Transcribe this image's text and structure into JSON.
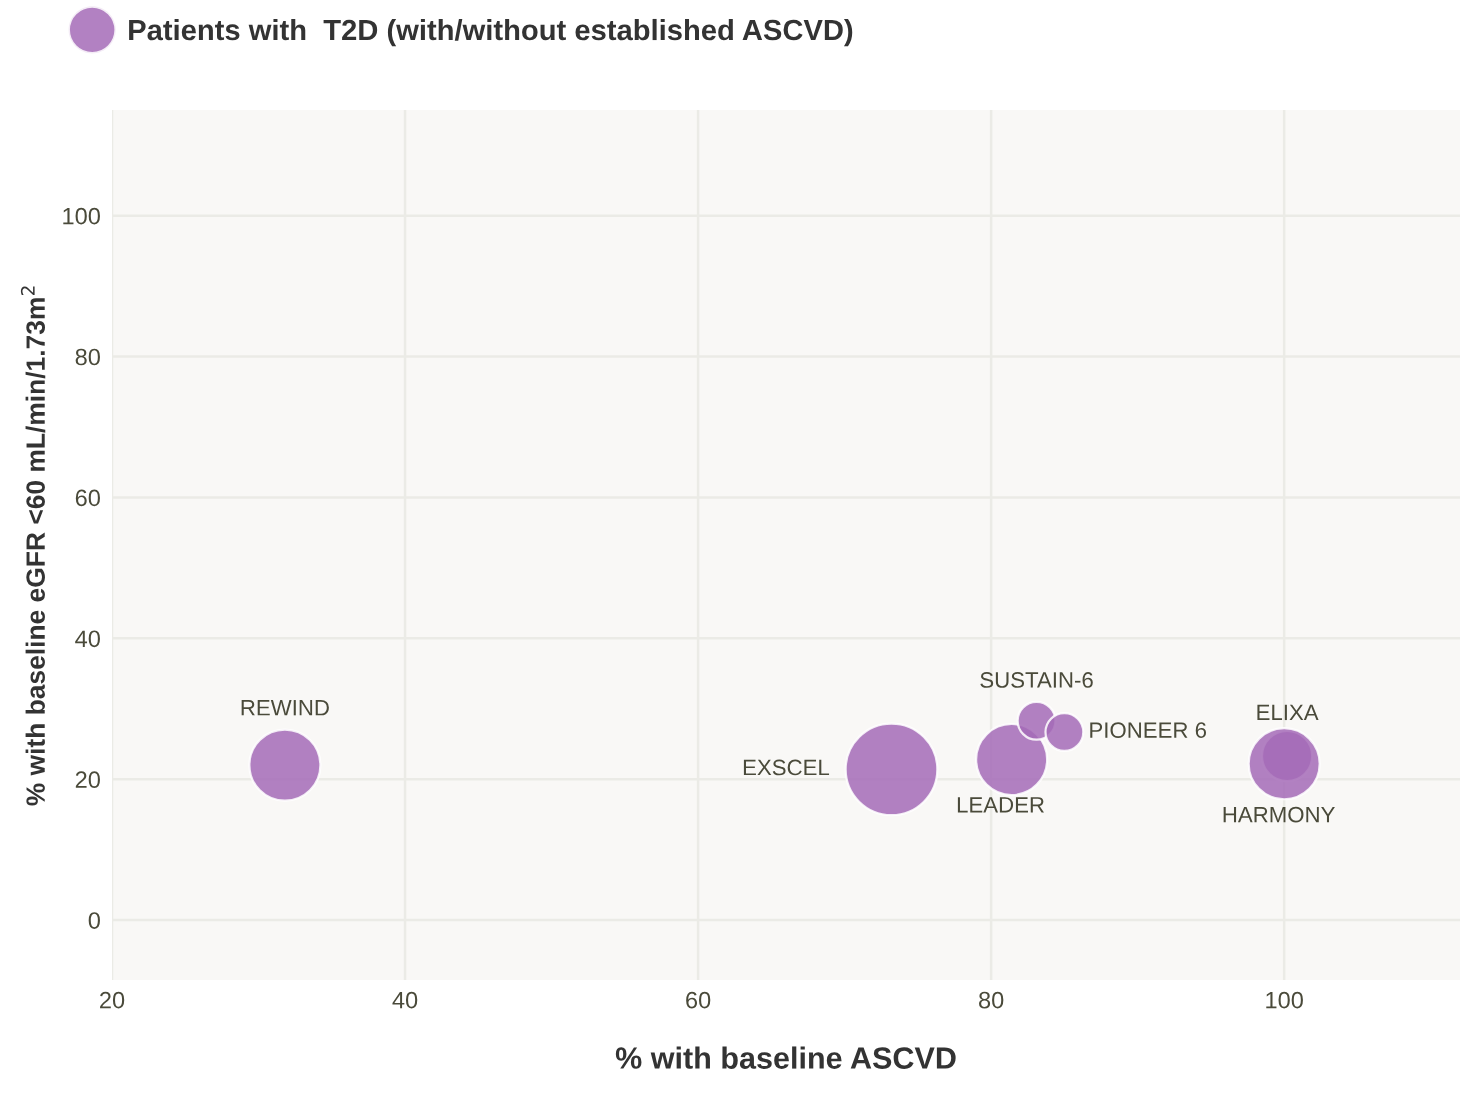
{
  "chart_data": {
    "type": "bubble",
    "xlabel": "% with baseline ASCVD",
    "ylabel": "% with baseline eGFR <60 mL/min/1.73m$^{2}$",
    "x": [
      31.8,
      73.2,
      81.4,
      83.1,
      85.0,
      100.2,
      100.0
    ],
    "series": [
      {
        "name": "Patients with  T2D (with/without established ASCVD)",
        "color": "#a56bb7",
        "values": [
          22.0,
          21.4,
          22.8,
          28.3,
          26.7,
          23.3,
          22.2
        ],
        "sizes": [
          0.6,
          1,
          0.6,
          0.17,
          0.17,
          0.3,
          0.6
        ]
      }
    ],
    "annotations": [
      {
        "text": "REWIND",
        "x": 31.8,
        "y": 22.0
      },
      {
        "text": "EXSCEL",
        "x": 73.2,
        "y": 21.4
      },
      {
        "text": "LEADER",
        "x": 81.4,
        "y": 22.8
      },
      {
        "text": "SUSTAIN-6",
        "x": 83.1,
        "y": 28.3
      },
      {
        "text": "PIONEER 6",
        "x": 85.0,
        "y": 26.7
      },
      {
        "text": "ELIXA",
        "x": 100.2,
        "y": 23.3
      },
      {
        "text": "HARMONY",
        "x": 100.0,
        "y": 22.2
      }
    ],
    "xlim": [
      20,
      112
    ],
    "ylim": [
      -8.5,
      115
    ],
    "xticks": [
      20,
      40,
      60,
      80,
      100
    ],
    "yticks": [
      0,
      20,
      40,
      60,
      80,
      100
    ],
    "grid": true,
    "legend": "top left"
  }
}
